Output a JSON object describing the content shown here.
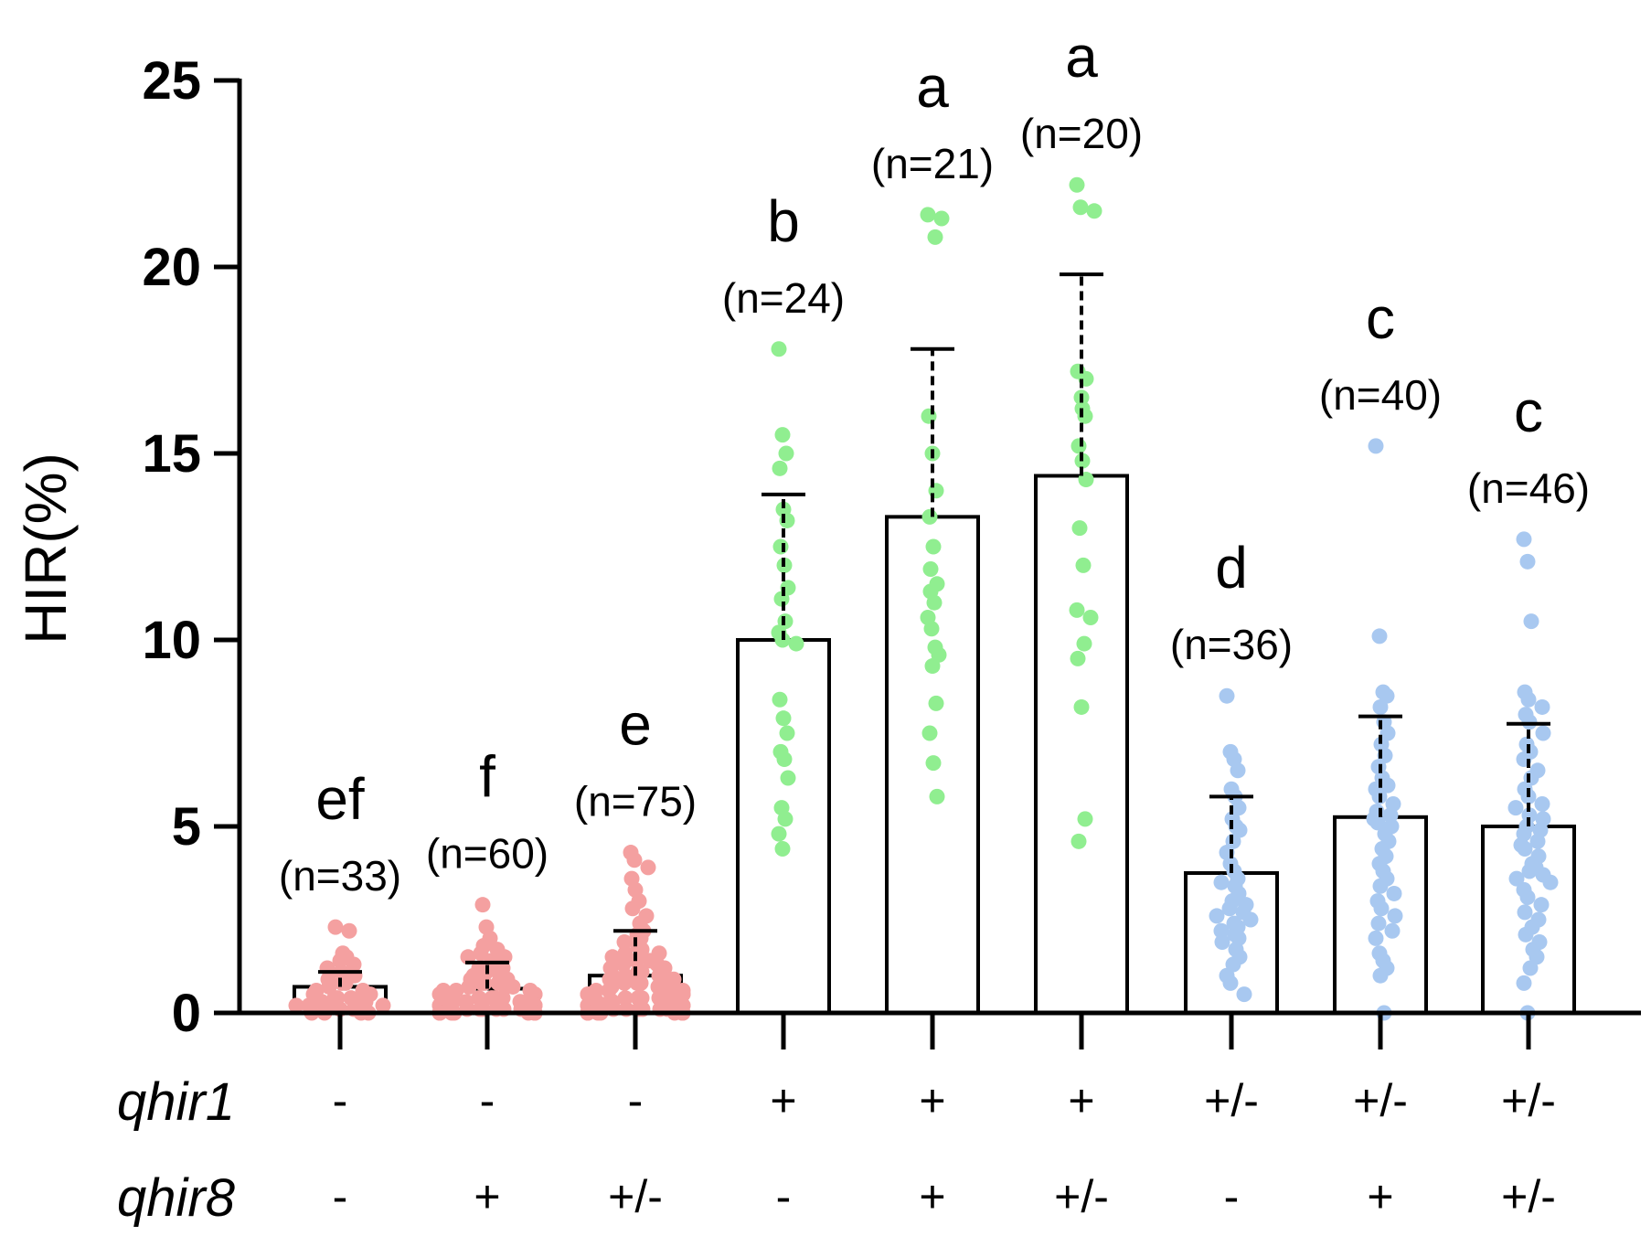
{
  "chart_data": {
    "type": "bar",
    "title": "",
    "xlabel": "",
    "ylabel": "HIR(%)",
    "ylim": [
      0,
      25
    ],
    "yticks": [
      "0",
      "5",
      "10",
      "15",
      "20",
      "25"
    ],
    "genotype_rows": [
      {
        "name": "qhir1",
        "values": [
          "-",
          "-",
          "-",
          "+",
          "+",
          "+",
          "+/-",
          "+/-",
          "+/-"
        ]
      },
      {
        "name": "qhir8",
        "values": [
          "-",
          "+",
          "+/-",
          "-",
          "+",
          "+/-",
          "-",
          "+",
          "+/-"
        ]
      }
    ],
    "groups": [
      {
        "letter": "ef",
        "n": "(n=33)",
        "mean": 0.7,
        "sd_upper": 1.1,
        "color": "#f4a0a0",
        "points": [
          2.3,
          2.2,
          1.6,
          1.5,
          1.4,
          1.3,
          1.2,
          1.1,
          1.0,
          0.9,
          0.8,
          0.8,
          0.7,
          0.6,
          0.6,
          0.5,
          0.5,
          0.4,
          0.4,
          0.4,
          0.3,
          0.3,
          0.3,
          0.2,
          0.2,
          0.2,
          0.1,
          0.1,
          0.1,
          0.0,
          0.0,
          0.0,
          0.0
        ]
      },
      {
        "letter": "f",
        "n": "(n=60)",
        "mean": 0.65,
        "sd_upper": 1.35,
        "color": "#f4a0a0",
        "points": [
          2.9,
          2.3,
          2.0,
          1.8,
          1.7,
          1.6,
          1.5,
          1.5,
          1.4,
          1.3,
          1.2,
          1.2,
          1.1,
          1.0,
          1.0,
          0.9,
          0.9,
          0.8,
          0.8,
          0.8,
          0.7,
          0.7,
          0.7,
          0.6,
          0.6,
          0.6,
          0.5,
          0.5,
          0.5,
          0.5,
          0.4,
          0.4,
          0.4,
          0.4,
          0.3,
          0.3,
          0.3,
          0.3,
          0.3,
          0.2,
          0.2,
          0.2,
          0.2,
          0.2,
          0.1,
          0.1,
          0.1,
          0.1,
          0.1,
          0.1,
          0.0,
          0.0,
          0.0,
          0.0,
          0.0,
          0.0,
          0.0,
          0.0,
          0.0,
          0.0
        ]
      },
      {
        "letter": "e",
        "n": "(n=75)",
        "mean": 1.0,
        "sd_upper": 2.2,
        "color": "#f4a0a0",
        "points": [
          4.3,
          4.1,
          3.9,
          3.6,
          3.3,
          3.0,
          2.8,
          2.6,
          2.4,
          2.2,
          2.1,
          2.0,
          1.9,
          1.8,
          1.7,
          1.6,
          1.6,
          1.5,
          1.4,
          1.4,
          1.3,
          1.3,
          1.2,
          1.2,
          1.1,
          1.1,
          1.0,
          1.0,
          1.0,
          0.9,
          0.9,
          0.9,
          0.8,
          0.8,
          0.8,
          0.7,
          0.7,
          0.7,
          0.6,
          0.6,
          0.6,
          0.6,
          0.5,
          0.5,
          0.5,
          0.5,
          0.4,
          0.4,
          0.4,
          0.4,
          0.3,
          0.3,
          0.3,
          0.3,
          0.3,
          0.2,
          0.2,
          0.2,
          0.2,
          0.2,
          0.1,
          0.1,
          0.1,
          0.1,
          0.1,
          0.1,
          0.0,
          0.0,
          0.0,
          0.0,
          0.0,
          0.0,
          0.0,
          0.0,
          0.0
        ]
      },
      {
        "letter": "b",
        "n": "(n=24)",
        "mean": 10.0,
        "sd_upper": 13.9,
        "color": "#90ee90",
        "points": [
          17.8,
          15.5,
          15.0,
          14.6,
          13.5,
          13.2,
          12.5,
          12.0,
          11.4,
          11.1,
          10.5,
          10.2,
          10.0,
          9.9,
          8.4,
          7.9,
          7.5,
          7.0,
          6.8,
          6.3,
          5.5,
          5.2,
          4.8,
          4.4
        ]
      },
      {
        "letter": "a",
        "n": "(n=21)",
        "mean": 13.3,
        "sd_upper": 17.8,
        "color": "#90ee90",
        "points": [
          21.4,
          21.3,
          20.8,
          16.0,
          15.0,
          14.0,
          13.3,
          12.5,
          11.5,
          11.3,
          11.0,
          10.6,
          10.3,
          9.8,
          9.6,
          9.3,
          8.3,
          7.5,
          6.7,
          5.8,
          11.9
        ]
      },
      {
        "letter": "a",
        "n": "(n=20)",
        "mean": 14.4,
        "sd_upper": 19.8,
        "color": "#90ee90",
        "points": [
          22.2,
          21.6,
          21.5,
          17.2,
          16.5,
          16.0,
          15.2,
          14.8,
          14.3,
          13.0,
          12.0,
          10.8,
          10.6,
          9.9,
          9.5,
          8.2,
          5.2,
          4.6,
          16.2,
          17.0
        ]
      },
      {
        "letter": "d",
        "n": "(n=36)",
        "mean": 3.75,
        "sd_upper": 5.8,
        "color": "#a8c8f0",
        "points": [
          8.5,
          7.0,
          6.8,
          6.5,
          6.0,
          5.8,
          5.5,
          5.2,
          5.0,
          4.9,
          4.6,
          4.3,
          4.0,
          3.8,
          3.6,
          3.5,
          3.4,
          3.2,
          3.0,
          2.9,
          2.8,
          2.7,
          2.6,
          2.5,
          2.4,
          2.3,
          2.2,
          2.1,
          2.0,
          1.9,
          1.7,
          1.5,
          1.3,
          1.0,
          0.8,
          0.5
        ]
      },
      {
        "letter": "c",
        "n": "(n=40)",
        "mean": 5.25,
        "sd_upper": 7.95,
        "color": "#a8c8f0",
        "points": [
          15.2,
          10.1,
          8.6,
          8.5,
          8.2,
          7.8,
          7.5,
          7.2,
          6.9,
          6.6,
          6.3,
          6.0,
          5.8,
          5.6,
          5.4,
          5.3,
          5.2,
          5.1,
          5.0,
          4.8,
          4.6,
          4.4,
          4.2,
          4.0,
          3.8,
          3.6,
          3.4,
          3.2,
          3.0,
          2.8,
          2.6,
          2.4,
          2.2,
          2.0,
          1.6,
          1.4,
          1.2,
          1.0,
          0.0,
          6.1
        ]
      },
      {
        "letter": "c",
        "n": "(n=46)",
        "mean": 5.0,
        "sd_upper": 7.75,
        "color": "#a8c8f0",
        "points": [
          12.7,
          12.1,
          10.5,
          8.6,
          8.4,
          8.2,
          8.0,
          7.8,
          7.5,
          7.2,
          7.0,
          6.8,
          6.5,
          6.3,
          6.0,
          5.8,
          5.6,
          5.5,
          5.3,
          5.2,
          5.0,
          4.9,
          4.8,
          4.6,
          4.5,
          4.4,
          4.2,
          4.0,
          3.9,
          3.8,
          3.7,
          3.6,
          3.5,
          3.3,
          3.1,
          2.9,
          2.7,
          2.5,
          2.3,
          2.1,
          1.9,
          1.7,
          1.5,
          1.2,
          0.8,
          0.0
        ]
      }
    ]
  }
}
